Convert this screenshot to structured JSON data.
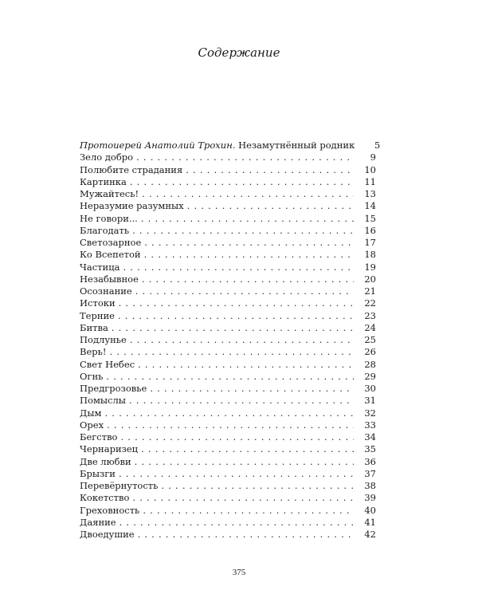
{
  "title": "Содержание",
  "entries": [
    {
      "author": "Протоиерей Анатолий Трохин.",
      "label": "Незамутнённый родник",
      "page": "5"
    },
    {
      "label": "Зело добро",
      "page": "9"
    },
    {
      "label": "Полюбите страдания",
      "page": "10"
    },
    {
      "label": "Картинка",
      "page": "11"
    },
    {
      "label": "Мужайтесь!",
      "page": "13"
    },
    {
      "label": "Неразумие разумных",
      "page": "14"
    },
    {
      "label": "Не говори...",
      "page": "15"
    },
    {
      "label": "Благодать",
      "page": "16"
    },
    {
      "label": "Светозарное",
      "page": "17"
    },
    {
      "label": "Ко Всепетой",
      "page": "18"
    },
    {
      "label": "Частица",
      "page": "19"
    },
    {
      "label": "Незабывное",
      "page": "20"
    },
    {
      "label": "Осознание",
      "page": "21"
    },
    {
      "label": "Истоки",
      "page": "22"
    },
    {
      "label": "Терние",
      "page": "23"
    },
    {
      "label": "Битва",
      "page": "24"
    },
    {
      "label": "Подлунье",
      "page": "25"
    },
    {
      "label": "Верь!",
      "page": "26"
    },
    {
      "label": "Свет Небес",
      "page": "28"
    },
    {
      "label": "Огнь",
      "page": "29"
    },
    {
      "label": "Предгрозовье",
      "page": "30"
    },
    {
      "label": "Помыслы",
      "page": "31"
    },
    {
      "label": "Дым",
      "page": "32"
    },
    {
      "label": "Орех",
      "page": "33"
    },
    {
      "label": "Бегство",
      "page": "34"
    },
    {
      "label": "Чернаризец",
      "page": "35"
    },
    {
      "label": "Две любви",
      "page": "36"
    },
    {
      "label": "Брызги",
      "page": "37"
    },
    {
      "label": "Перевёрнутость",
      "page": "38"
    },
    {
      "label": "Кокетство",
      "page": "39"
    },
    {
      "label": "Греховность",
      "page": "40"
    },
    {
      "label": "Даяние",
      "page": "41"
    },
    {
      "label": "Двоедушие",
      "page": "42"
    }
  ],
  "folio": "375"
}
